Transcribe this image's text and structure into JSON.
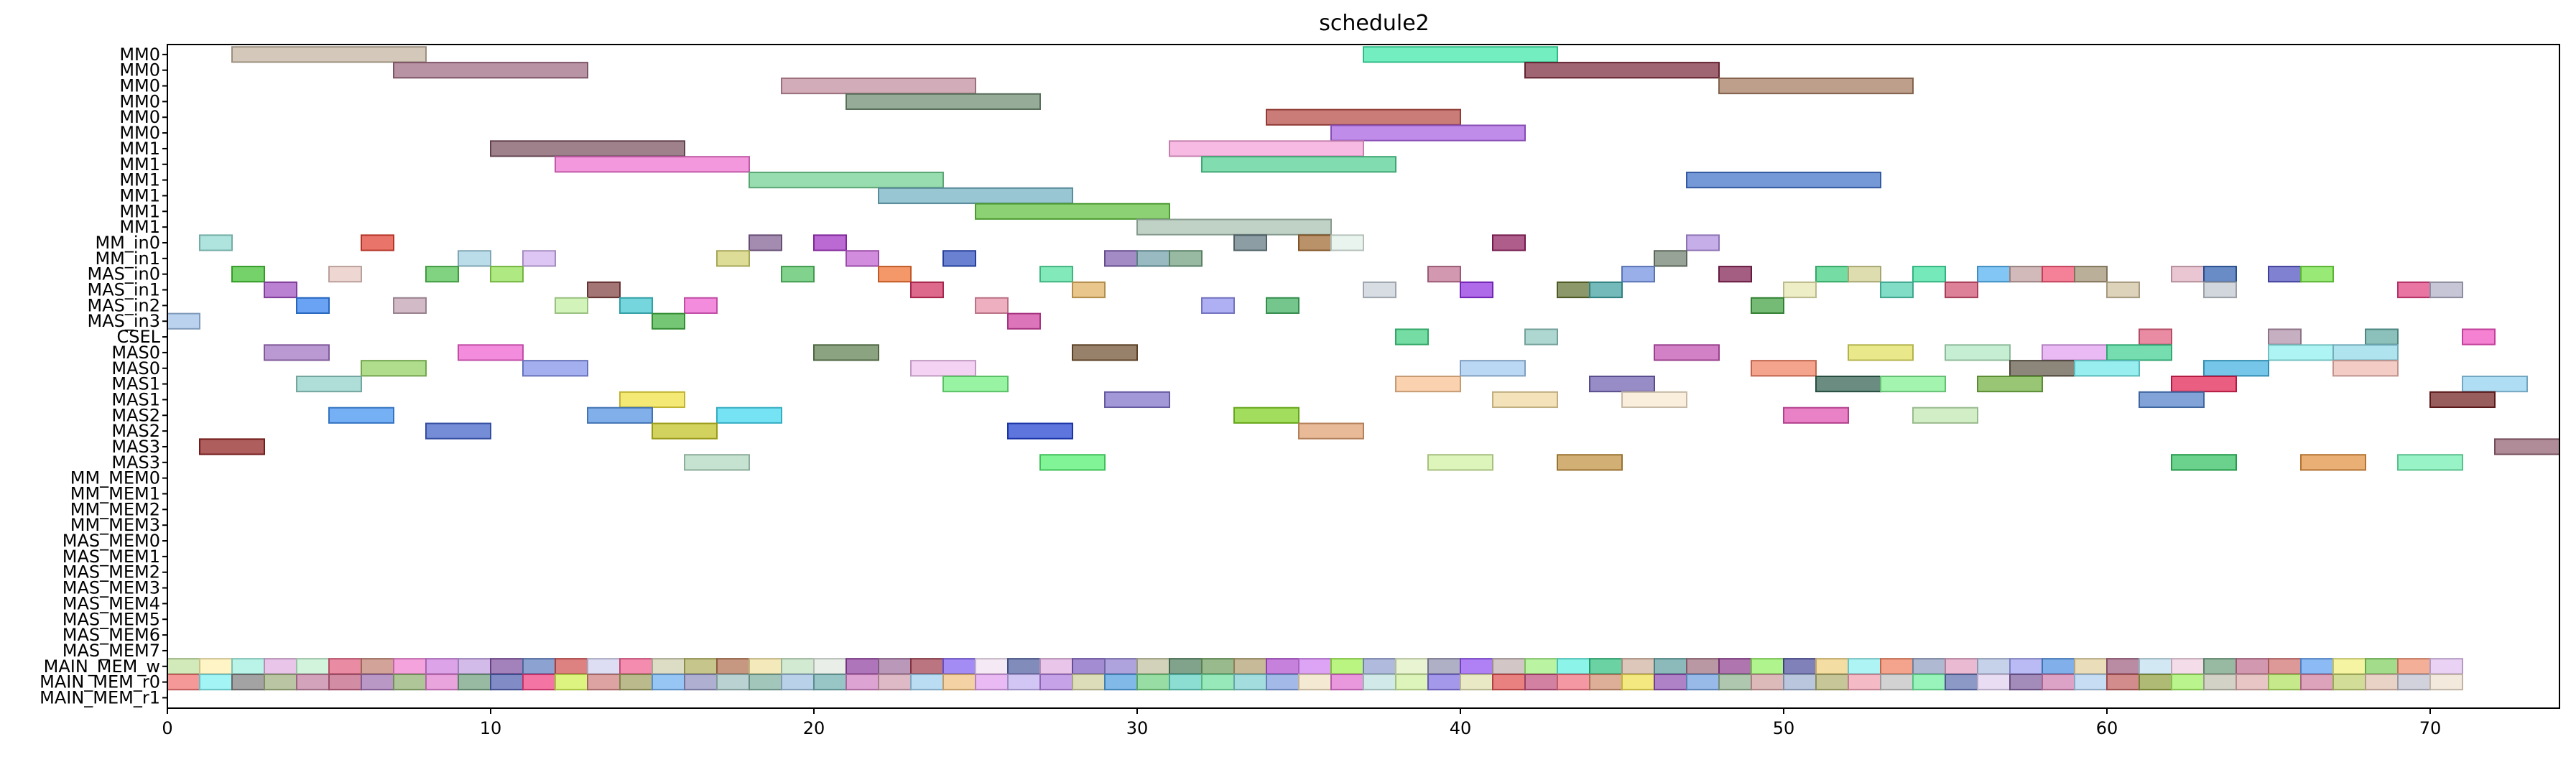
{
  "chart_data": {
    "type": "gantt",
    "title": "schedule2",
    "xlim": [
      0,
      74
    ],
    "xticks": [
      0,
      10,
      20,
      30,
      40,
      50,
      60,
      70
    ],
    "rows": [
      "MM0",
      "MM0",
      "MM0",
      "MM0",
      "MM0",
      "MM0",
      "MM1",
      "MM1",
      "MM1",
      "MM1",
      "MM1",
      "MM1",
      "MM_in0",
      "MM_in1",
      "MAS_in0",
      "MAS_in1",
      "MAS_in2",
      "MAS_in3",
      "CSEL",
      "MAS0",
      "MAS0",
      "MAS1",
      "MAS1",
      "MAS2",
      "MAS2",
      "MAS3",
      "MAS3",
      "MM_MEM0",
      "MM_MEM1",
      "MM_MEM2",
      "MM_MEM3",
      "MAS_MEM0",
      "MAS_MEM1",
      "MAS_MEM2",
      "MAS_MEM3",
      "MAS_MEM4",
      "MAS_MEM5",
      "MAS_MEM6",
      "MAS_MEM7",
      "MAIN_MEM_w",
      "MAIN_MEM_r0",
      "MAIN_MEM_r1"
    ],
    "tasks": [
      {
        "row": 0,
        "start": 2,
        "end": 8,
        "color": "#c2b39e"
      },
      {
        "row": 0,
        "start": 37,
        "end": 43,
        "color": "#3ce8a8"
      },
      {
        "row": 1,
        "start": 7,
        "end": 13,
        "color": "#9c6a80"
      },
      {
        "row": 1,
        "start": 42,
        "end": 48,
        "color": "#7a2a3c"
      },
      {
        "row": 2,
        "start": 19,
        "end": 25,
        "color": "#c08c9c"
      },
      {
        "row": 2,
        "start": 48,
        "end": 54,
        "color": "#a47a60"
      },
      {
        "row": 3,
        "start": 21,
        "end": 27,
        "color": "#6e8a70"
      },
      {
        "row": 4,
        "start": 34,
        "end": 40,
        "color": "#b44a44"
      },
      {
        "row": 5,
        "start": 36,
        "end": 42,
        "color": "#a860e0"
      },
      {
        "row": 6,
        "start": 10,
        "end": 16,
        "color": "#7a5060"
      },
      {
        "row": 6,
        "start": 31,
        "end": 37,
        "color": "#f4a0d8"
      },
      {
        "row": 7,
        "start": 12,
        "end": 18,
        "color": "#f070d0"
      },
      {
        "row": 7,
        "start": 32,
        "end": 38,
        "color": "#50d090"
      },
      {
        "row": 8,
        "start": 18,
        "end": 24,
        "color": "#70d090"
      },
      {
        "row": 8,
        "start": 47,
        "end": 53,
        "color": "#4070c8"
      },
      {
        "row": 9,
        "start": 22,
        "end": 28,
        "color": "#70b0c0"
      },
      {
        "row": 10,
        "start": 25,
        "end": 31,
        "color": "#60c040"
      },
      {
        "row": 11,
        "start": 30,
        "end": 36,
        "color": "#a8c0b0"
      },
      {
        "row": 12,
        "start": 1,
        "end": 2,
        "color": "#90d8d0"
      },
      {
        "row": 12,
        "start": 6,
        "end": 7,
        "color": "#e04030"
      },
      {
        "row": 12,
        "start": 18,
        "end": 19,
        "color": "#806090"
      },
      {
        "row": 12,
        "start": 20,
        "end": 21,
        "color": "#a030c0"
      },
      {
        "row": 12,
        "start": 33,
        "end": 34,
        "color": "#607880"
      },
      {
        "row": 12,
        "start": 35,
        "end": 36,
        "color": "#a06830"
      },
      {
        "row": 12,
        "start": 36,
        "end": 37,
        "color": "#e0f0e8"
      },
      {
        "row": 12,
        "start": 41,
        "end": 42,
        "color": "#902060"
      },
      {
        "row": 12,
        "start": 47,
        "end": 48,
        "color": "#b090e0"
      },
      {
        "row": 13,
        "start": 9,
        "end": 10,
        "color": "#a0d0e0"
      },
      {
        "row": 13,
        "start": 11,
        "end": 12,
        "color": "#d0b0f0"
      },
      {
        "row": 13,
        "start": 17,
        "end": 18,
        "color": "#d0d070"
      },
      {
        "row": 13,
        "start": 21,
        "end": 22,
        "color": "#c060d0"
      },
      {
        "row": 13,
        "start": 24,
        "end": 25,
        "color": "#3050c0"
      },
      {
        "row": 13,
        "start": 29,
        "end": 30,
        "color": "#8060b0"
      },
      {
        "row": 13,
        "start": 30,
        "end": 31,
        "color": "#70a0a8"
      },
      {
        "row": 13,
        "start": 31,
        "end": 32,
        "color": "#70a080"
      },
      {
        "row": 13,
        "start": 46,
        "end": 47,
        "color": "#708070"
      },
      {
        "row": 14,
        "start": 2,
        "end": 3,
        "color": "#40c030"
      },
      {
        "row": 14,
        "start": 5,
        "end": 6,
        "color": "#e8c8c0"
      },
      {
        "row": 14,
        "start": 8,
        "end": 9,
        "color": "#50c050"
      },
      {
        "row": 14,
        "start": 10,
        "end": 11,
        "color": "#90e050"
      },
      {
        "row": 14,
        "start": 19,
        "end": 20,
        "color": "#50c060"
      },
      {
        "row": 14,
        "start": 22,
        "end": 23,
        "color": "#f07030"
      },
      {
        "row": 14,
        "start": 27,
        "end": 28,
        "color": "#50e0a0"
      },
      {
        "row": 14,
        "start": 39,
        "end": 40,
        "color": "#c07090"
      },
      {
        "row": 14,
        "start": 45,
        "end": 46,
        "color": "#7090e0"
      },
      {
        "row": 14,
        "start": 48,
        "end": 49,
        "color": "#802050"
      },
      {
        "row": 14,
        "start": 51,
        "end": 52,
        "color": "#40d080"
      },
      {
        "row": 14,
        "start": 52,
        "end": 53,
        "color": "#d0d090"
      },
      {
        "row": 14,
        "start": 54,
        "end": 55,
        "color": "#40e0a0"
      },
      {
        "row": 14,
        "start": 56,
        "end": 57,
        "color": "#50b0f0"
      },
      {
        "row": 14,
        "start": 57,
        "end": 58,
        "color": "#c0a0a0"
      },
      {
        "row": 14,
        "start": 58,
        "end": 59,
        "color": "#f05070"
      },
      {
        "row": 14,
        "start": 59,
        "end": 60,
        "color": "#a09070"
      },
      {
        "row": 14,
        "start": 62,
        "end": 63,
        "color": "#e0b0c0"
      },
      {
        "row": 14,
        "start": 63,
        "end": 64,
        "color": "#3060b0"
      },
      {
        "row": 14,
        "start": 65,
        "end": 66,
        "color": "#5050c0"
      },
      {
        "row": 14,
        "start": 66,
        "end": 67,
        "color": "#70e040"
      },
      {
        "row": 15,
        "start": 3,
        "end": 4,
        "color": "#a050c0"
      },
      {
        "row": 15,
        "start": 13,
        "end": 14,
        "color": "#804040"
      },
      {
        "row": 15,
        "start": 23,
        "end": 24,
        "color": "#d03060"
      },
      {
        "row": 15,
        "start": 28,
        "end": 29,
        "color": "#e0b060"
      },
      {
        "row": 15,
        "start": 37,
        "end": 38,
        "color": "#c8d0d8"
      },
      {
        "row": 15,
        "start": 40,
        "end": 41,
        "color": "#9030e0"
      },
      {
        "row": 15,
        "start": 43,
        "end": 44,
        "color": "#607030"
      },
      {
        "row": 15,
        "start": 44,
        "end": 45,
        "color": "#40a0a0"
      },
      {
        "row": 15,
        "start": 50,
        "end": 51,
        "color": "#e8e8b0"
      },
      {
        "row": 15,
        "start": 53,
        "end": 54,
        "color": "#50d0b0"
      },
      {
        "row": 15,
        "start": 55,
        "end": 56,
        "color": "#d05070"
      },
      {
        "row": 15,
        "start": 60,
        "end": 61,
        "color": "#d0c0a0"
      },
      {
        "row": 15,
        "start": 63,
        "end": 64,
        "color": "#c0c8d0"
      },
      {
        "row": 15,
        "start": 69,
        "end": 70,
        "color": "#e04080"
      },
      {
        "row": 15,
        "start": 70,
        "end": 71,
        "color": "#b0b0c8"
      },
      {
        "row": 16,
        "start": 4,
        "end": 5,
        "color": "#3080f0"
      },
      {
        "row": 16,
        "start": 7,
        "end": 8,
        "color": "#c0a0b0"
      },
      {
        "row": 16,
        "start": 12,
        "end": 13,
        "color": "#c0f0a0"
      },
      {
        "row": 16,
        "start": 14,
        "end": 15,
        "color": "#40c8d0"
      },
      {
        "row": 16,
        "start": 16,
        "end": 17,
        "color": "#f060d0"
      },
      {
        "row": 16,
        "start": 25,
        "end": 26,
        "color": "#e890a8"
      },
      {
        "row": 16,
        "start": 32,
        "end": 33,
        "color": "#9090f0"
      },
      {
        "row": 16,
        "start": 34,
        "end": 35,
        "color": "#40b060"
      },
      {
        "row": 16,
        "start": 49,
        "end": 50,
        "color": "#40a040"
      },
      {
        "row": 17,
        "start": 0,
        "end": 1,
        "color": "#a0c0e8"
      },
      {
        "row": 17,
        "start": 15,
        "end": 16,
        "color": "#40b040"
      },
      {
        "row": 17,
        "start": 26,
        "end": 27,
        "color": "#d040a0"
      },
      {
        "row": 18,
        "start": 38,
        "end": 39,
        "color": "#40d080"
      },
      {
        "row": 18,
        "start": 42,
        "end": 43,
        "color": "#90c8c0"
      },
      {
        "row": 18,
        "start": 61,
        "end": 62,
        "color": "#e06080"
      },
      {
        "row": 18,
        "start": 65,
        "end": 66,
        "color": "#b090a8"
      },
      {
        "row": 18,
        "start": 68,
        "end": 69,
        "color": "#60a8a0"
      },
      {
        "row": 18,
        "start": 71,
        "end": 72,
        "color": "#f050c0"
      },
      {
        "row": 19,
        "start": 3,
        "end": 5,
        "color": "#a070c0"
      },
      {
        "row": 19,
        "start": 9,
        "end": 11,
        "color": "#f060d0"
      },
      {
        "row": 19,
        "start": 20,
        "end": 22,
        "color": "#608050"
      },
      {
        "row": 19,
        "start": 28,
        "end": 30,
        "color": "#705030"
      },
      {
        "row": 19,
        "start": 46,
        "end": 48,
        "color": "#c050b0"
      },
      {
        "row": 19,
        "start": 52,
        "end": 54,
        "color": "#e0e060"
      },
      {
        "row": 19,
        "start": 55,
        "end": 57,
        "color": "#b0e8c0"
      },
      {
        "row": 19,
        "start": 58,
        "end": 60,
        "color": "#e0a0f0"
      },
      {
        "row": 19,
        "start": 60,
        "end": 62,
        "color": "#40d090"
      },
      {
        "row": 19,
        "start": 65,
        "end": 67,
        "color": "#90f0f0"
      },
      {
        "row": 19,
        "start": 67,
        "end": 69,
        "color": "#90d8e8"
      },
      {
        "row": 20,
        "start": 6,
        "end": 8,
        "color": "#90d060"
      },
      {
        "row": 20,
        "start": 11,
        "end": 13,
        "color": "#8090e8"
      },
      {
        "row": 20,
        "start": 23,
        "end": 25,
        "color": "#f0c0f0"
      },
      {
        "row": 20,
        "start": 40,
        "end": 42,
        "color": "#a0c8f0"
      },
      {
        "row": 20,
        "start": 49,
        "end": 51,
        "color": "#f08060"
      },
      {
        "row": 20,
        "start": 57,
        "end": 59,
        "color": "#605848"
      },
      {
        "row": 20,
        "start": 59,
        "end": 61,
        "color": "#70e8e8"
      },
      {
        "row": 20,
        "start": 63,
        "end": 65,
        "color": "#40b0e0"
      },
      {
        "row": 20,
        "start": 67,
        "end": 69,
        "color": "#f0b8b0"
      },
      {
        "row": 21,
        "start": 4,
        "end": 6,
        "color": "#90d0c8"
      },
      {
        "row": 21,
        "start": 24,
        "end": 26,
        "color": "#70f080"
      },
      {
        "row": 21,
        "start": 38,
        "end": 40,
        "color": "#f8c090"
      },
      {
        "row": 21,
        "start": 44,
        "end": 46,
        "color": "#7060b0"
      },
      {
        "row": 21,
        "start": 51,
        "end": 53,
        "color": "#306050"
      },
      {
        "row": 21,
        "start": 53,
        "end": 55,
        "color": "#80f090"
      },
      {
        "row": 21,
        "start": 56,
        "end": 58,
        "color": "#70b040"
      },
      {
        "row": 21,
        "start": 62,
        "end": 64,
        "color": "#e02050"
      },
      {
        "row": 21,
        "start": 71,
        "end": 73,
        "color": "#90d0f0"
      },
      {
        "row": 22,
        "start": 14,
        "end": 16,
        "color": "#f0e040"
      },
      {
        "row": 22,
        "start": 29,
        "end": 31,
        "color": "#8070c8"
      },
      {
        "row": 22,
        "start": 41,
        "end": 43,
        "color": "#f0d8a0"
      },
      {
        "row": 22,
        "start": 45,
        "end": 47,
        "color": "#f8e8d0"
      },
      {
        "row": 22,
        "start": 61,
        "end": 63,
        "color": "#5080c8"
      },
      {
        "row": 22,
        "start": 70,
        "end": 72,
        "color": "#702020"
      },
      {
        "row": 23,
        "start": 5,
        "end": 7,
        "color": "#4090f0"
      },
      {
        "row": 23,
        "start": 13,
        "end": 15,
        "color": "#5090e0"
      },
      {
        "row": 23,
        "start": 17,
        "end": 19,
        "color": "#40d8f0"
      },
      {
        "row": 23,
        "start": 33,
        "end": 35,
        "color": "#80d020"
      },
      {
        "row": 23,
        "start": 50,
        "end": 52,
        "color": "#e050b0"
      },
      {
        "row": 23,
        "start": 54,
        "end": 56,
        "color": "#c0e8b0"
      },
      {
        "row": 24,
        "start": 8,
        "end": 10,
        "color": "#4060c8"
      },
      {
        "row": 24,
        "start": 15,
        "end": 17,
        "color": "#c0c020"
      },
      {
        "row": 24,
        "start": 26,
        "end": 28,
        "color": "#2040d0"
      },
      {
        "row": 24,
        "start": 35,
        "end": 37,
        "color": "#e0a070"
      },
      {
        "row": 25,
        "start": 1,
        "end": 3,
        "color": "#902020"
      },
      {
        "row": 25,
        "start": 72,
        "end": 74,
        "color": "#906070"
      },
      {
        "row": 26,
        "start": 16,
        "end": 18,
        "color": "#b0d8c0"
      },
      {
        "row": 26,
        "start": 27,
        "end": 29,
        "color": "#50f070"
      },
      {
        "row": 26,
        "start": 39,
        "end": 41,
        "color": "#d0f0a0"
      },
      {
        "row": 26,
        "start": 43,
        "end": 45,
        "color": "#c09040"
      },
      {
        "row": 26,
        "start": 62,
        "end": 64,
        "color": "#30c060"
      },
      {
        "row": 26,
        "start": 66,
        "end": 68,
        "color": "#e09040"
      },
      {
        "row": 26,
        "start": 69,
        "end": 71,
        "color": "#70f0b0"
      }
    ],
    "mem_row_colors": {
      "w": [
        "#c0e0a0",
        "#fff0b0",
        "#a0f0e0",
        "#e0b0e0",
        "#c0f0d0",
        "#e06080",
        "#c08070",
        "#f080d0",
        "#d080e0",
        "#c0a0e0",
        "#8050a0",
        "#6080c0",
        "#d05050",
        "#d0d0f0",
        "#f06090",
        "#d0d0b0",
        "#b0b060",
        "#b07050",
        "#f0e0a0",
        "#c0e0c0",
        "#e0e8e0",
        "#9040a0",
        "#a070a0",
        "#a04050",
        "#8060f0",
        "#f0e0f0",
        "#5060a0",
        "#e0b0e0",
        "#8060c0",
        "#9080d0",
        "#c0c0a0",
        "#508060",
        "#70a060",
        "#b0a070",
        "#b050d0",
        "#d080f0",
        "#a0f050",
        "#90a0d0",
        "#e0f0c0",
        "#9090b0",
        "#9050f0",
        "#c0b0b0",
        "#a0f080",
        "#60f0e0",
        "#30c080",
        "#d0b0a0",
        "#60a0a0",
        "#a07080",
        "#904090",
        "#90f060",
        "#5050a0",
        "#f0d080",
        "#90f0f0",
        "#f08060",
        "#90a0c0",
        "#e0a0c0",
        "#b0c0e0",
        "#a0a0f0",
        "#5090e0",
        "#e0d0a0",
        "#a06080",
        "#c0e0f0",
        "#f0d0e0",
        "#70a080",
        "#c07090",
        "#d07070",
        "#60a0f0",
        "#f0f080",
        "#80d060",
        "#f09070",
        "#e0c0f0"
      ],
      "r0": [
        "#f07070",
        "#80f0f0",
        "#808080",
        "#a0b080",
        "#c080a0",
        "#c06080",
        "#a070b0",
        "#90b070",
        "#e080d0",
        "#70a080",
        "#5060b0",
        "#f04080",
        "#d0f050",
        "#d08080",
        "#a0a060",
        "#70b0f0",
        "#9090c0",
        "#a0c0c0",
        "#80b0a0",
        "#a0c0e0",
        "#70b0b0",
        "#d080c0",
        "#d0a0b0",
        "#a0d0f0",
        "#f0c080",
        "#e0a0f0",
        "#c0b0f0",
        "#b080e0",
        "#d0d0a0",
        "#50a0e0",
        "#70d080",
        "#60d0c0",
        "#70e0a0",
        "#80d0d0",
        "#80a0e0",
        "#f0e0c0",
        "#e070d0",
        "#c0e0e0",
        "#d0f0a0",
        "#8070e0",
        "#e0e0b0",
        "#e05050",
        "#c05080",
        "#f07080",
        "#d09070",
        "#f0e050",
        "#9050b0",
        "#70a0e0",
        "#90b090",
        "#d0a0a0",
        "#a0b0d0",
        "#b0b070",
        "#f0a0b0",
        "#c0c0c0",
        "#70f0a0",
        "#6070b0",
        "#e0d0f0",
        "#8060a0",
        "#d080b0",
        "#b0d0f0",
        "#c06060",
        "#90a040",
        "#a0f060",
        "#c0c0b0",
        "#e0b0b0",
        "#b0e060",
        "#d080a0",
        "#c0d070",
        "#e0c0b0",
        "#c0c0d0",
        "#f0e0d0"
      ]
    }
  }
}
